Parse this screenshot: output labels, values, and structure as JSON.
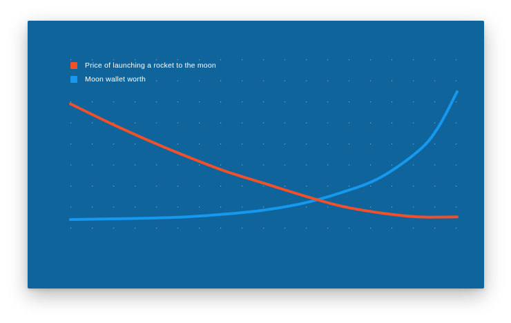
{
  "colors": {
    "background": "#0f659b",
    "grid_dot": "#a9cde6"
  },
  "chart_data": {
    "type": "line",
    "title": "",
    "xlabel": "",
    "ylabel": "",
    "grid": "dotted",
    "legend_position": "top-left",
    "xlim": [
      0,
      1
    ],
    "ylim": [
      0,
      1
    ],
    "series": [
      {
        "name": "Price of launching a rocket to the moon",
        "color": "#f0502a",
        "x": [
          0,
          0.1,
          0.2,
          0.3,
          0.4,
          0.5,
          0.6,
          0.7,
          0.8,
          0.9,
          1.0
        ],
        "y": [
          0.88,
          0.74,
          0.61,
          0.49,
          0.38,
          0.29,
          0.2,
          0.12,
          0.07,
          0.04,
          0.04
        ]
      },
      {
        "name": "Moon wallet worth",
        "color": "#1598ee",
        "x": [
          0,
          0.1,
          0.2,
          0.3,
          0.4,
          0.5,
          0.6,
          0.7,
          0.8,
          0.9,
          0.95,
          1.0
        ],
        "y": [
          0.02,
          0.025,
          0.03,
          0.04,
          0.06,
          0.09,
          0.14,
          0.22,
          0.33,
          0.53,
          0.7,
          0.97
        ]
      }
    ]
  }
}
